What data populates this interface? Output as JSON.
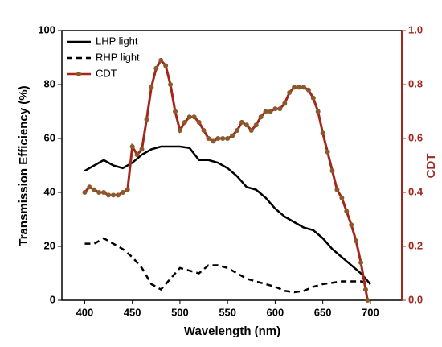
{
  "chart_data": {
    "type": "line",
    "xlabel": "Wavelength (nm)",
    "ylabel": "Transmission Efficiency (%)",
    "y2label": "CDT",
    "xlim": [
      376,
      733
    ],
    "xticks": [
      400,
      450,
      500,
      550,
      600,
      650,
      700
    ],
    "ylim": [
      0,
      100
    ],
    "yticks": [
      0,
      20,
      40,
      60,
      80,
      100
    ],
    "y2lim": [
      0,
      1
    ],
    "y2ticks": [
      {
        "value": 0,
        "label": "0.0"
      },
      0.2,
      0.4,
      0.6,
      0.8,
      {
        "value": 1,
        "label": "1.0"
      }
    ],
    "legend": "upper left",
    "series": [
      {
        "name": "LHP light",
        "color": "#000000",
        "dash": "solid",
        "x": [
          400,
          410,
          420,
          430,
          440,
          450,
          460,
          470,
          480,
          490,
          500,
          510,
          520,
          530,
          540,
          550,
          560,
          570,
          580,
          590,
          600,
          610,
          620,
          630,
          640,
          650,
          660,
          670,
          680,
          690,
          700
        ],
        "values": [
          48,
          50,
          52,
          50,
          49,
          51,
          54,
          56,
          57,
          57,
          57,
          56.5,
          52,
          52,
          51,
          49,
          46,
          42,
          41,
          38,
          34,
          31,
          29,
          27,
          26,
          23,
          19,
          16,
          13,
          10,
          6
        ]
      },
      {
        "name": "RHP light",
        "color": "#000000",
        "dash": "dashed",
        "x": [
          400,
          410,
          420,
          430,
          440,
          450,
          460,
          470,
          480,
          490,
          500,
          510,
          520,
          530,
          540,
          550,
          560,
          570,
          580,
          590,
          600,
          610,
          620,
          630,
          640,
          650,
          660,
          670,
          680,
          690,
          700
        ],
        "values": [
          21,
          21,
          23,
          21,
          19,
          16,
          12,
          6,
          4,
          8,
          12,
          11,
          10,
          13,
          13,
          12,
          10,
          8,
          7,
          6,
          5,
          3.5,
          3,
          3.5,
          5,
          6,
          6.5,
          7,
          7,
          7,
          6
        ]
      },
      {
        "name": "CDT",
        "color": "#a3261c",
        "marker_color": "#8b5a2b",
        "axis": "y2",
        "marker": true,
        "x": [
          400,
          405,
          410,
          415,
          420,
          425,
          430,
          435,
          440,
          445,
          450,
          455,
          460,
          465,
          470,
          475,
          480,
          485,
          490,
          495,
          500,
          505,
          510,
          515,
          520,
          525,
          530,
          535,
          540,
          545,
          550,
          555,
          560,
          565,
          570,
          575,
          580,
          585,
          590,
          595,
          600,
          605,
          610,
          615,
          620,
          625,
          630,
          635,
          640,
          645,
          650,
          655,
          660,
          665,
          670,
          675,
          680,
          685,
          690,
          695,
          697
        ],
        "values": [
          0.4,
          0.42,
          0.41,
          0.4,
          0.4,
          0.39,
          0.39,
          0.39,
          0.4,
          0.41,
          0.57,
          0.54,
          0.56,
          0.67,
          0.79,
          0.86,
          0.89,
          0.87,
          0.8,
          0.7,
          0.63,
          0.66,
          0.68,
          0.68,
          0.66,
          0.63,
          0.6,
          0.59,
          0.6,
          0.6,
          0.6,
          0.61,
          0.63,
          0.66,
          0.65,
          0.63,
          0.65,
          0.68,
          0.7,
          0.7,
          0.71,
          0.71,
          0.73,
          0.77,
          0.79,
          0.79,
          0.79,
          0.78,
          0.75,
          0.7,
          0.62,
          0.55,
          0.48,
          0.41,
          0.38,
          0.33,
          0.28,
          0.22,
          0.14,
          0.04,
          0.0
        ]
      }
    ]
  }
}
